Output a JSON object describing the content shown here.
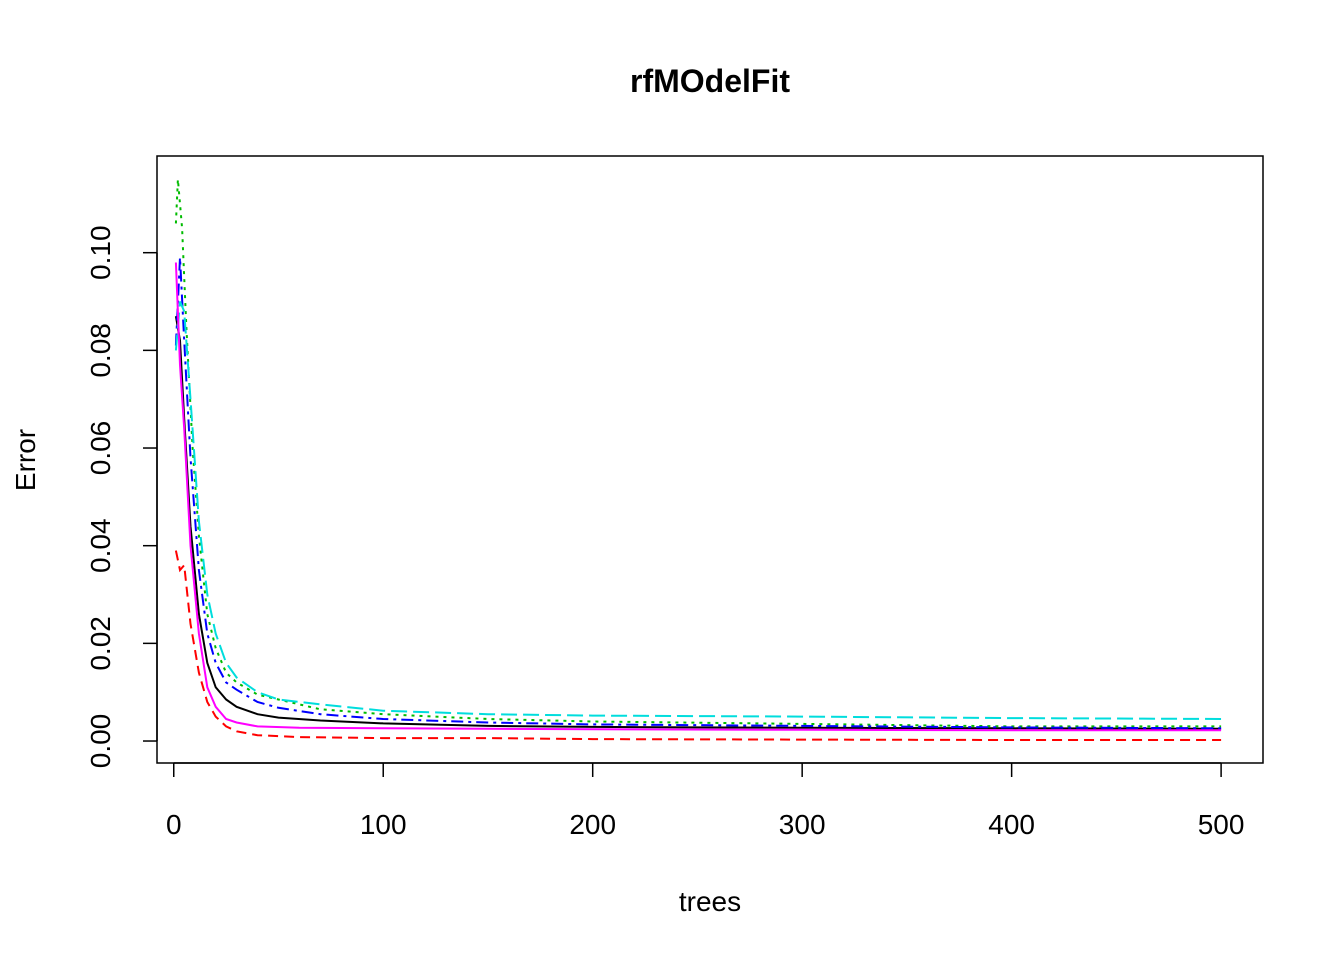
{
  "chart_data": {
    "type": "line",
    "title": "rfMOdelFit",
    "xlabel": "trees",
    "ylabel": "Error",
    "xlim": [
      -8,
      520
    ],
    "ylim": [
      -0.0045,
      0.1198
    ],
    "x_ticks": [
      "0",
      "100",
      "200",
      "300",
      "400",
      "500"
    ],
    "y_ticks": [
      "0.00",
      "0.02",
      "0.04",
      "0.06",
      "0.08",
      "0.10"
    ],
    "grid": false,
    "legend": "none",
    "series": [
      {
        "color": "#000000",
        "dash": "",
        "points": [
          [
            1,
            0.087
          ],
          [
            3,
            0.082
          ],
          [
            5,
            0.066
          ],
          [
            8,
            0.044
          ],
          [
            12,
            0.026
          ],
          [
            16,
            0.016
          ],
          [
            20,
            0.011
          ],
          [
            25,
            0.0085
          ],
          [
            30,
            0.007
          ],
          [
            40,
            0.0055
          ],
          [
            50,
            0.0048
          ],
          [
            70,
            0.0042
          ],
          [
            100,
            0.0036
          ],
          [
            150,
            0.0031
          ],
          [
            200,
            0.0029
          ],
          [
            300,
            0.0027
          ],
          [
            400,
            0.0026
          ],
          [
            500,
            0.0025
          ]
        ]
      },
      {
        "color": "#ff0000",
        "dash": "10,6",
        "points": [
          [
            1,
            0.039
          ],
          [
            3,
            0.035
          ],
          [
            5,
            0.036
          ],
          [
            8,
            0.024
          ],
          [
            12,
            0.014
          ],
          [
            16,
            0.008
          ],
          [
            20,
            0.005
          ],
          [
            25,
            0.003
          ],
          [
            30,
            0.002
          ],
          [
            40,
            0.0012
          ],
          [
            60,
            0.0008
          ],
          [
            100,
            0.0006
          ],
          [
            150,
            0.0006
          ],
          [
            200,
            0.0004
          ],
          [
            300,
            0.0003
          ],
          [
            400,
            0.0002
          ],
          [
            500,
            0.0002
          ]
        ]
      },
      {
        "color": "#00bb00",
        "dash": "3,5",
        "points": [
          [
            1,
            0.106
          ],
          [
            2,
            0.115
          ],
          [
            4,
            0.105
          ],
          [
            6,
            0.085
          ],
          [
            9,
            0.06
          ],
          [
            12,
            0.042
          ],
          [
            16,
            0.026
          ],
          [
            20,
            0.019
          ],
          [
            25,
            0.014
          ],
          [
            30,
            0.012
          ],
          [
            40,
            0.0095
          ],
          [
            50,
            0.0085
          ],
          [
            70,
            0.0065
          ],
          [
            100,
            0.0055
          ],
          [
            150,
            0.0045
          ],
          [
            200,
            0.004
          ],
          [
            300,
            0.0035
          ],
          [
            400,
            0.003
          ],
          [
            500,
            0.003
          ]
        ]
      },
      {
        "color": "#0000ff",
        "dash": "12,5,3,5",
        "points": [
          [
            1,
            0.081
          ],
          [
            3,
            0.099
          ],
          [
            5,
            0.082
          ],
          [
            8,
            0.058
          ],
          [
            12,
            0.035
          ],
          [
            16,
            0.022
          ],
          [
            20,
            0.016
          ],
          [
            25,
            0.012
          ],
          [
            30,
            0.0105
          ],
          [
            40,
            0.008
          ],
          [
            50,
            0.0068
          ],
          [
            70,
            0.0055
          ],
          [
            100,
            0.0045
          ],
          [
            150,
            0.0038
          ],
          [
            200,
            0.0034
          ],
          [
            300,
            0.0031
          ],
          [
            400,
            0.0028
          ],
          [
            500,
            0.0026
          ]
        ]
      },
      {
        "color": "#00dddd",
        "dash": "16,6",
        "points": [
          [
            1,
            0.08
          ],
          [
            3,
            0.09
          ],
          [
            5,
            0.088
          ],
          [
            8,
            0.07
          ],
          [
            12,
            0.045
          ],
          [
            16,
            0.03
          ],
          [
            20,
            0.022
          ],
          [
            25,
            0.016
          ],
          [
            30,
            0.013
          ],
          [
            40,
            0.01
          ],
          [
            50,
            0.0085
          ],
          [
            70,
            0.0075
          ],
          [
            100,
            0.0062
          ],
          [
            150,
            0.0055
          ],
          [
            200,
            0.0052
          ],
          [
            300,
            0.005
          ],
          [
            400,
            0.0047
          ],
          [
            500,
            0.0045
          ]
        ]
      },
      {
        "color": "#ff00ff",
        "dash": "",
        "points": [
          [
            1,
            0.098
          ],
          [
            3,
            0.077
          ],
          [
            5,
            0.064
          ],
          [
            8,
            0.04
          ],
          [
            12,
            0.022
          ],
          [
            16,
            0.011
          ],
          [
            20,
            0.007
          ],
          [
            25,
            0.0045
          ],
          [
            30,
            0.0038
          ],
          [
            40,
            0.003
          ],
          [
            60,
            0.0027
          ],
          [
            100,
            0.0026
          ],
          [
            150,
            0.0025
          ],
          [
            200,
            0.0024
          ],
          [
            300,
            0.0023
          ],
          [
            400,
            0.0022
          ],
          [
            500,
            0.0022
          ]
        ]
      }
    ]
  }
}
